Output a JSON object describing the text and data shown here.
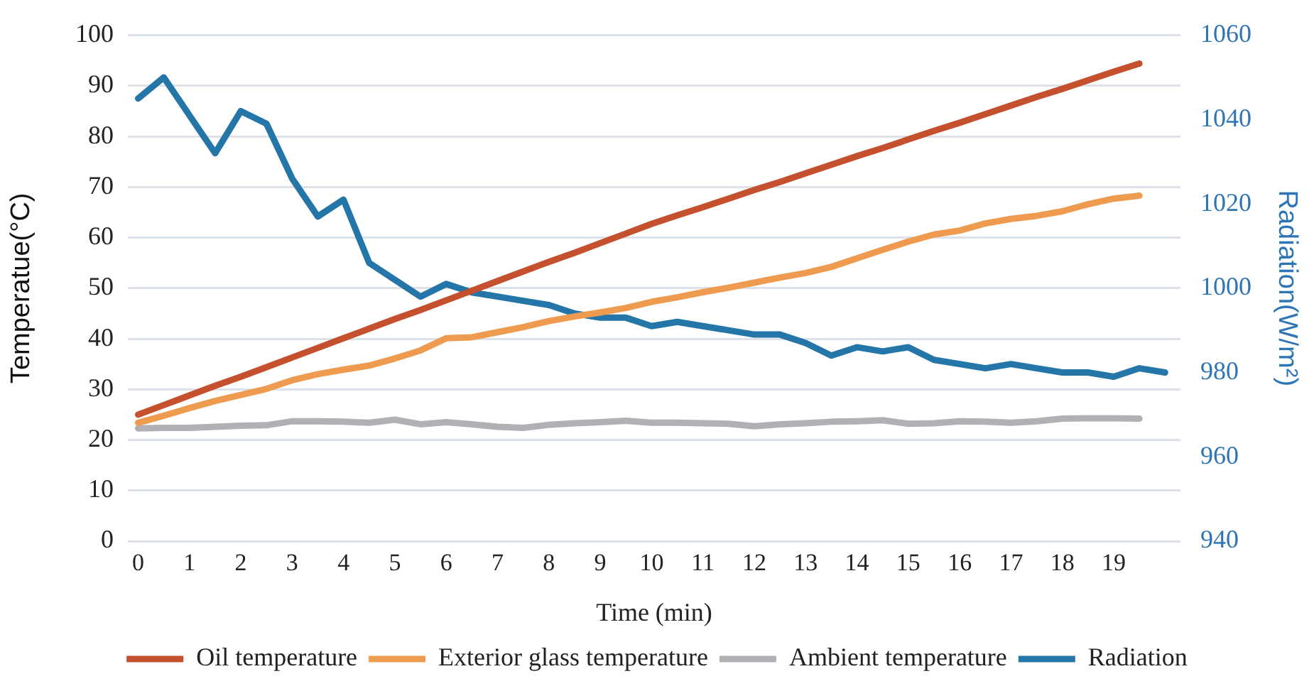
{
  "chart_data": {
    "type": "line",
    "xlabel": "Time (min)",
    "ylabel": "Temperatue(°C)",
    "y2label": "Radiation(W/m²)",
    "xlim": [
      -0.2,
      20.3
    ],
    "xticks": [
      0,
      1,
      2,
      3,
      4,
      5,
      6,
      7,
      8,
      9,
      10,
      11,
      12,
      13,
      14,
      15,
      16,
      17,
      18,
      19
    ],
    "ylim": [
      0,
      100
    ],
    "yticks": [
      0,
      10,
      20,
      30,
      40,
      50,
      60,
      70,
      80,
      90,
      100
    ],
    "y2lim": [
      940,
      1060
    ],
    "y2ticks": [
      940,
      960,
      980,
      1000,
      1020,
      1040,
      1060
    ],
    "grid": "y",
    "legend": "bottom",
    "marker": "none",
    "line_style": "solid",
    "x": [
      0,
      0.5,
      1,
      1.5,
      2,
      2.5,
      3,
      3.5,
      4,
      4.5,
      5,
      5.5,
      6,
      6.5,
      7,
      7.5,
      8,
      8.5,
      9,
      9.5,
      10,
      10.5,
      11,
      11.5,
      12,
      12.5,
      13,
      13.5,
      14,
      14.5,
      15,
      15.5,
      16,
      16.5,
      17,
      17.5,
      18,
      18.5,
      19,
      19.5
    ],
    "series": [
      {
        "name": "Oil temperature",
        "color": "#c5502e",
        "values": [
          25.0,
          26.9,
          28.8,
          30.7,
          32.5,
          34.4,
          36.3,
          38.2,
          40.1,
          42.0,
          43.9,
          45.7,
          47.6,
          49.5,
          51.4,
          53.3,
          55.2,
          57.0,
          58.9,
          60.8,
          62.7,
          64.4,
          66.0,
          67.7,
          69.4,
          71.0,
          72.7,
          74.4,
          76.1,
          77.7,
          79.4,
          81.1,
          82.7,
          84.4,
          86.1,
          87.8,
          89.4,
          91.1,
          92.8,
          94.4
        ]
      },
      {
        "name": "Exterior glass temperature",
        "color": "#ee9b4f",
        "values": [
          23.4,
          24.8,
          26.3,
          27.7,
          28.9,
          30.1,
          31.8,
          33.0,
          33.9,
          34.7,
          36.1,
          37.7,
          40.1,
          40.3,
          41.3,
          42.3,
          43.5,
          44.4,
          45.2,
          46.1,
          47.3,
          48.2,
          49.2,
          50.1,
          51.1,
          52.1,
          53.0,
          54.2,
          55.9,
          57.6,
          59.2,
          60.6,
          61.4,
          62.8,
          63.7,
          64.3,
          65.2,
          66.6,
          67.7,
          68.3
        ]
      },
      {
        "name": "Ambient temperature",
        "color": "#b1b1b5",
        "values": [
          22.3,
          22.4,
          22.4,
          22.6,
          22.8,
          22.9,
          23.7,
          23.7,
          23.6,
          23.4,
          24.0,
          23.1,
          23.5,
          23.1,
          22.6,
          22.4,
          23.0,
          23.3,
          23.5,
          23.8,
          23.4,
          23.4,
          23.3,
          23.2,
          22.7,
          23.1,
          23.3,
          23.6,
          23.7,
          23.9,
          23.2,
          23.3,
          23.7,
          23.6,
          23.4,
          23.7,
          24.2,
          24.3,
          24.3,
          24.2
        ]
      },
      {
        "name": "Radiation",
        "color": "#2475a8",
        "axis": "y2",
        "x": [
          0,
          0.5,
          1,
          1.5,
          2,
          2.5,
          3,
          3.5,
          4,
          4.5,
          5,
          5.5,
          6,
          6.5,
          7,
          7.5,
          8,
          8.5,
          9,
          9.5,
          10,
          10.5,
          11,
          11.5,
          12,
          12.5,
          13,
          13.5,
          14,
          14.5,
          15,
          15.5,
          16,
          16.5,
          17,
          17.5,
          18,
          18.5,
          19,
          19.5,
          20
        ],
        "values": [
          1045,
          1050,
          1041,
          1032,
          1042,
          1039,
          1026,
          1017,
          1021,
          1006,
          1002,
          998,
          1001,
          999,
          998,
          997,
          996,
          994,
          993,
          993,
          991,
          992,
          991,
          990,
          989,
          989,
          987,
          984,
          986,
          985,
          986,
          983,
          982,
          981,
          982,
          981,
          980,
          980,
          979,
          981,
          980
        ]
      }
    ]
  }
}
